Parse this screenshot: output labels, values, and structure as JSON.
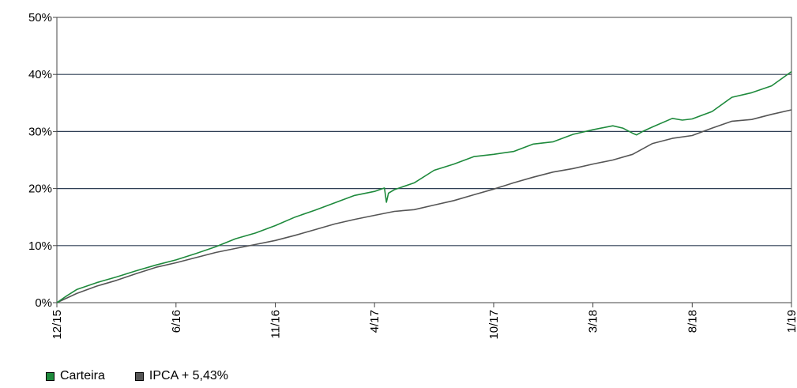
{
  "chart_data": {
    "type": "line",
    "title": "",
    "xlabel": "",
    "ylabel": "",
    "ylim": [
      0,
      50
    ],
    "y_ticks": [
      0,
      10,
      20,
      30,
      40,
      50
    ],
    "y_tick_labels": [
      "0%",
      "10%",
      "20%",
      "30%",
      "40%",
      "50%"
    ],
    "x_range": [
      0,
      37
    ],
    "x_ticks": [
      0,
      6,
      11,
      16,
      22,
      27,
      32,
      37
    ],
    "x_tick_labels": [
      "12/15",
      "6/16",
      "11/16",
      "4/17",
      "10/17",
      "3/18",
      "8/18",
      "1/19"
    ],
    "grid": "horizontal",
    "legend": "bottom-left",
    "series": [
      {
        "name": "Carteira",
        "color": "#1e8a3c",
        "x": [
          0,
          0.5,
          1,
          2,
          3,
          4,
          5,
          6,
          7,
          8,
          9,
          10,
          11,
          12,
          13,
          14,
          15,
          16,
          16.5,
          16.6,
          16.7,
          17,
          18,
          19,
          20,
          21,
          22,
          23,
          24,
          25,
          26,
          27,
          28,
          28.5,
          29,
          29.2,
          29.5,
          30,
          31,
          31.5,
          32,
          33,
          34,
          35,
          36,
          37
        ],
        "y": [
          0,
          1.2,
          2.3,
          3.5,
          4.5,
          5.6,
          6.6,
          7.5,
          8.6,
          9.8,
          11.2,
          12.2,
          13.5,
          15,
          16.2,
          17.5,
          18.8,
          19.5,
          20.1,
          17.6,
          19.2,
          19.8,
          21,
          23.2,
          24.3,
          25.6,
          26,
          26.5,
          27.8,
          28.2,
          29.5,
          30.3,
          31.0,
          30.6,
          29.7,
          29.4,
          30.0,
          30.8,
          32.3,
          32.0,
          32.2,
          33.5,
          36,
          36.8,
          38,
          40.5
        ]
      },
      {
        "name": "IPCA + 5,43%",
        "color": "#555555",
        "x": [
          0,
          1,
          2,
          3,
          4,
          5,
          6,
          7,
          8,
          9,
          10,
          11,
          12,
          13,
          14,
          15,
          16,
          17,
          18,
          19,
          20,
          21,
          22,
          23,
          24,
          25,
          26,
          27,
          28,
          29,
          30,
          31,
          32,
          33,
          34,
          35,
          36,
          37
        ],
        "y": [
          0,
          1.6,
          2.9,
          3.9,
          5.1,
          6.2,
          7.0,
          7.9,
          8.8,
          9.5,
          10.2,
          10.9,
          11.8,
          12.8,
          13.8,
          14.6,
          15.3,
          16.0,
          16.3,
          17.1,
          17.9,
          18.9,
          19.9,
          21.0,
          22.0,
          22.9,
          23.5,
          24.3,
          25.0,
          26.0,
          27.9,
          28.8,
          29.3,
          30.6,
          31.8,
          32.1,
          33.0,
          33.8
        ]
      }
    ]
  }
}
